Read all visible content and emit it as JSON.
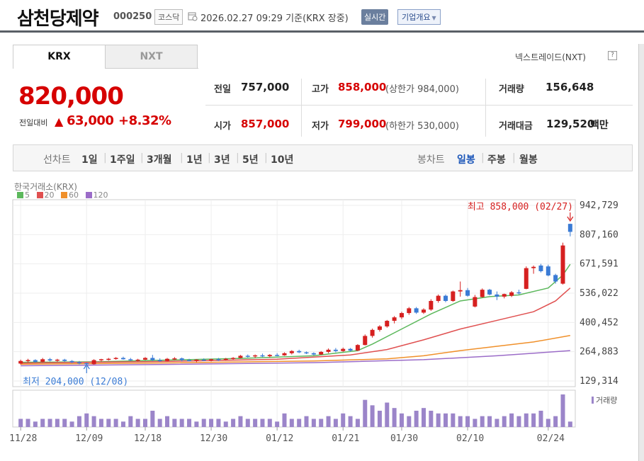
{
  "header": {
    "company": "삼천당제약",
    "code": "000250",
    "market": "코스닥",
    "datetime": "2026.02.27 09:29",
    "basis": "기준(KRX 장중)",
    "realtime_btn": "실시간",
    "info_btn": "기업개요"
  },
  "exchange_tabs": [
    "KRX",
    "NXT"
  ],
  "nxt_link": "넥스트레이드(NXT)",
  "quote": {
    "price": "820,000",
    "change_label": "전일대비",
    "change_arrow": "▲",
    "change": "63,000",
    "change_pct": "+8.32%",
    "prev_close_label": "전일",
    "prev_close": "757,000",
    "high_label": "고가",
    "high": "858,000",
    "upper_limit": "(상한가 984,000)",
    "volume_label": "거래량",
    "volume": "156,648",
    "open_label": "시가",
    "open": "857,000",
    "low_label": "저가",
    "low": "799,000",
    "lower_limit": "(하한가 530,000)",
    "amount_label": "거래대금",
    "amount": "129,520",
    "amount_unit": "백만"
  },
  "period_bar": {
    "line_label": "선차트",
    "line_periods": [
      "1일",
      "1주일",
      "3개월",
      "1년",
      "3년",
      "5년",
      "10년"
    ],
    "candle_label": "봉차트",
    "candle_periods": [
      "일봉",
      "주봉",
      "월봉"
    ],
    "selected": "일봉"
  },
  "chart_data": {
    "type": "candlestick",
    "source_label": "한국거래소(KRX)",
    "ma_legend": [
      {
        "name": "5",
        "color": "#5cb85c"
      },
      {
        "name": "20",
        "color": "#e05050"
      },
      {
        "name": "60",
        "color": "#f0902a"
      },
      {
        "name": "120",
        "color": "#9b6cc8"
      }
    ],
    "y_ticks": [
      "942,729",
      "807,160",
      "671,591",
      "536,022",
      "400,452",
      "264,883",
      "129,314"
    ],
    "x_ticks": [
      "11/28",
      "12/09",
      "12/18",
      "12/30",
      "01/12",
      "01/21",
      "01/30",
      "02/10",
      "02/24"
    ],
    "max_annotation": "최고 858,000 (02/27)",
    "min_annotation": "최저 204,000 (12/08)",
    "volume_label": "거래량",
    "colors": {
      "up": "#d62020",
      "down": "#3a7bd5",
      "volume": "#9b85c9"
    },
    "ohlc": [
      [
        210000,
        228000,
        205000,
        222000
      ],
      [
        222000,
        232000,
        215000,
        226000
      ],
      [
        226000,
        230000,
        214000,
        218000
      ],
      [
        218000,
        236000,
        216000,
        230000
      ],
      [
        230000,
        236000,
        220000,
        224000
      ],
      [
        224000,
        232000,
        218000,
        228000
      ],
      [
        228000,
        232000,
        218000,
        222000
      ],
      [
        222000,
        226000,
        212000,
        216000
      ],
      [
        216000,
        222000,
        206000,
        212000
      ],
      [
        212000,
        214000,
        204000,
        207000
      ],
      [
        207000,
        230000,
        205000,
        226000
      ],
      [
        226000,
        232000,
        220000,
        230000
      ],
      [
        230000,
        236000,
        224000,
        232000
      ],
      [
        232000,
        240000,
        228000,
        236000
      ],
      [
        236000,
        242000,
        228000,
        230000
      ],
      [
        230000,
        236000,
        222000,
        226000
      ],
      [
        226000,
        232000,
        220000,
        228000
      ],
      [
        228000,
        240000,
        226000,
        236000
      ],
      [
        236000,
        250000,
        222000,
        226000
      ],
      [
        226000,
        234000,
        218000,
        222000
      ],
      [
        222000,
        236000,
        220000,
        232000
      ],
      [
        232000,
        240000,
        226000,
        234000
      ],
      [
        234000,
        238000,
        220000,
        226000
      ],
      [
        226000,
        232000,
        220000,
        224000
      ],
      [
        224000,
        230000,
        216000,
        228000
      ],
      [
        228000,
        234000,
        222000,
        226000
      ],
      [
        226000,
        232000,
        220000,
        230000
      ],
      [
        230000,
        236000,
        222000,
        228000
      ],
      [
        228000,
        236000,
        224000,
        232000
      ],
      [
        232000,
        240000,
        228000,
        236000
      ],
      [
        236000,
        250000,
        234000,
        246000
      ],
      [
        246000,
        252000,
        238000,
        244000
      ],
      [
        244000,
        252000,
        236000,
        248000
      ],
      [
        248000,
        256000,
        240000,
        244000
      ],
      [
        244000,
        254000,
        238000,
        250000
      ],
      [
        250000,
        258000,
        244000,
        248000
      ],
      [
        248000,
        262000,
        246000,
        258000
      ],
      [
        258000,
        272000,
        252000,
        268000
      ],
      [
        268000,
        274000,
        258000,
        262000
      ],
      [
        262000,
        266000,
        254000,
        258000
      ],
      [
        258000,
        262000,
        248000,
        252000
      ],
      [
        252000,
        268000,
        250000,
        264000
      ],
      [
        264000,
        280000,
        258000,
        274000
      ],
      [
        274000,
        282000,
        262000,
        268000
      ],
      [
        268000,
        284000,
        264000,
        278000
      ],
      [
        278000,
        282000,
        266000,
        270000
      ],
      [
        270000,
        300000,
        268000,
        296000
      ],
      [
        296000,
        345000,
        294000,
        338000
      ],
      [
        338000,
        372000,
        330000,
        366000
      ],
      [
        366000,
        388000,
        358000,
        382000
      ],
      [
        382000,
        412000,
        376000,
        408000
      ],
      [
        408000,
        430000,
        396000,
        424000
      ],
      [
        424000,
        450000,
        416000,
        444000
      ],
      [
        444000,
        472000,
        436000,
        466000
      ],
      [
        466000,
        472000,
        440000,
        446000
      ],
      [
        446000,
        466000,
        440000,
        460000
      ],
      [
        460000,
        508000,
        454000,
        500000
      ],
      [
        500000,
        530000,
        492000,
        524000
      ],
      [
        524000,
        530000,
        494000,
        500000
      ],
      [
        500000,
        548000,
        496000,
        544000
      ],
      [
        544000,
        590000,
        520000,
        550000
      ],
      [
        550000,
        560000,
        520000,
        524000
      ],
      [
        474000,
        528000,
        470000,
        518000
      ],
      [
        518000,
        558000,
        516000,
        552000
      ],
      [
        552000,
        556000,
        526000,
        530000
      ],
      [
        530000,
        544000,
        504000,
        520000
      ],
      [
        520000,
        534000,
        512000,
        532000
      ],
      [
        524000,
        546000,
        518000,
        540000
      ],
      [
        540000,
        552000,
        530000,
        536000
      ],
      [
        556000,
        660000,
        554000,
        652000
      ],
      [
        652000,
        664000,
        626000,
        658000
      ],
      [
        664000,
        672000,
        632000,
        638000
      ],
      [
        660000,
        668000,
        614000,
        618000
      ],
      [
        620000,
        626000,
        580000,
        590000
      ],
      [
        580000,
        770000,
        576000,
        757000
      ],
      [
        857000,
        858000,
        799000,
        820000
      ]
    ],
    "volume": [
      3,
      3,
      2,
      3,
      3,
      3,
      3,
      2,
      4,
      5,
      4,
      3,
      3,
      3,
      2,
      4,
      3,
      3,
      6,
      3,
      4,
      3,
      3,
      3,
      2,
      3,
      3,
      3,
      2,
      3,
      4,
      3,
      3,
      3,
      3,
      2,
      5,
      3,
      3,
      4,
      3,
      3,
      4,
      3,
      5,
      4,
      3,
      10,
      8,
      6,
      9,
      7,
      5,
      4,
      6,
      7,
      6,
      5,
      5,
      5,
      4,
      4,
      3,
      4,
      4,
      3,
      4,
      5,
      4,
      5,
      5,
      6,
      3,
      4,
      12,
      2
    ],
    "ma": {
      "ma5": [
        [
          0,
          216000
        ],
        [
          10,
          218000
        ],
        [
          20,
          226000
        ],
        [
          30,
          234000
        ],
        [
          40,
          246000
        ],
        [
          46,
          270000
        ],
        [
          48,
          300000
        ],
        [
          52,
          370000
        ],
        [
          56,
          440000
        ],
        [
          60,
          500000
        ],
        [
          64,
          520000
        ],
        [
          68,
          528000
        ],
        [
          72,
          560000
        ],
        [
          74,
          620000
        ],
        [
          75,
          670000
        ]
      ],
      "ma20": [
        [
          0,
          212000
        ],
        [
          20,
          220000
        ],
        [
          35,
          230000
        ],
        [
          45,
          250000
        ],
        [
          50,
          275000
        ],
        [
          55,
          320000
        ],
        [
          60,
          370000
        ],
        [
          65,
          410000
        ],
        [
          70,
          450000
        ],
        [
          73,
          500000
        ],
        [
          75,
          560000
        ]
      ],
      "ma60": [
        [
          0,
          207000
        ],
        [
          20,
          213000
        ],
        [
          40,
          222000
        ],
        [
          50,
          232000
        ],
        [
          55,
          246000
        ],
        [
          60,
          270000
        ],
        [
          65,
          290000
        ],
        [
          70,
          310000
        ],
        [
          75,
          340000
        ]
      ],
      "ma120": [
        [
          0,
          200000
        ],
        [
          20,
          206000
        ],
        [
          40,
          214000
        ],
        [
          55,
          228000
        ],
        [
          65,
          246000
        ],
        [
          75,
          270000
        ]
      ]
    }
  }
}
